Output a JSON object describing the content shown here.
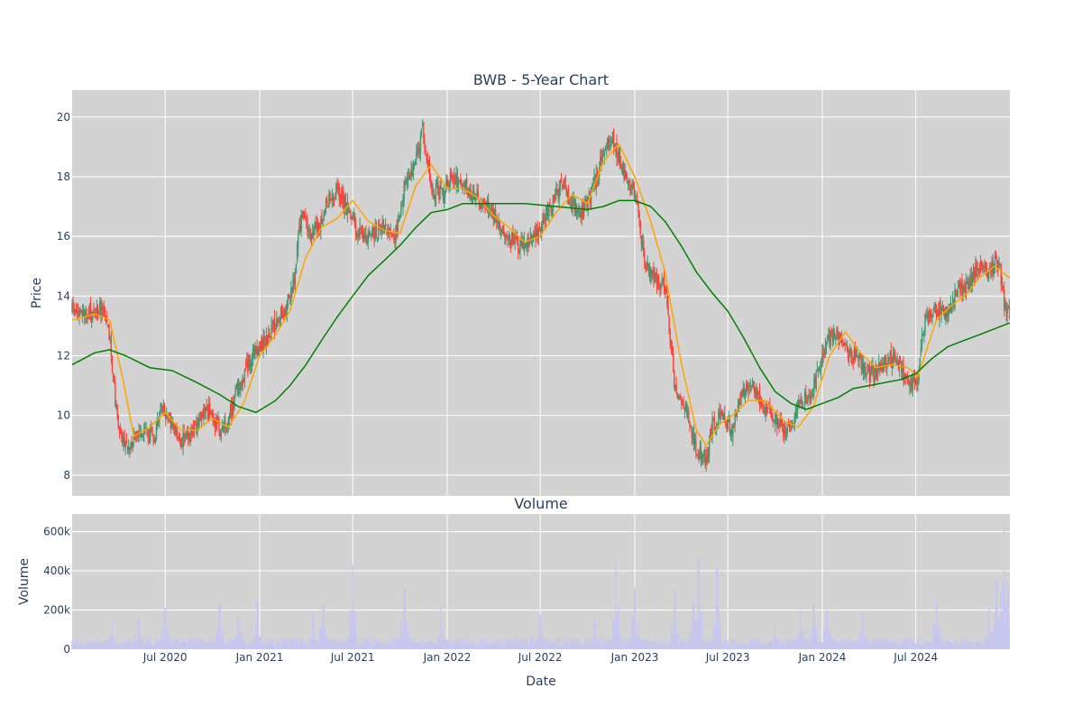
{
  "chart_data": [
    {
      "type": "candlestick",
      "title": "BWB - 5-Year Chart",
      "ylabel": "Price",
      "ylim": [
        7.3,
        20.9
      ],
      "y_ticks": [
        8,
        10,
        12,
        14,
        16,
        18,
        20
      ],
      "x_range": [
        "2020-01-02",
        "2024-12-31"
      ],
      "x_ticks": [
        {
          "date": "2020-07-01",
          "label": "Jul 2020"
        },
        {
          "date": "2021-01-01",
          "label": "Jan 2021"
        },
        {
          "date": "2021-07-01",
          "label": "Jul 2021"
        },
        {
          "date": "2022-01-01",
          "label": "Jan 2022"
        },
        {
          "date": "2022-07-01",
          "label": "Jul 2022"
        },
        {
          "date": "2023-01-01",
          "label": "Jan 2023"
        },
        {
          "date": "2023-07-01",
          "label": "Jul 2023"
        },
        {
          "date": "2024-01-01",
          "label": "Jan 2024"
        },
        {
          "date": "2024-07-01",
          "label": "Jul 2024"
        }
      ],
      "grid": true,
      "colors": {
        "background": "#d3d3d3",
        "increasing": "#3d9970",
        "decreasing": "#ff4136",
        "ma_short": "#ffa500",
        "ma_long": "#008000"
      },
      "close_path": [
        [
          "2020-01-02",
          13.5
        ],
        [
          "2020-02-01",
          13.3
        ],
        [
          "2020-03-01",
          13.6
        ],
        [
          "2020-03-15",
          12.5
        ],
        [
          "2020-04-01",
          9.5
        ],
        [
          "2020-04-15",
          8.9
        ],
        [
          "2020-05-01",
          9.2
        ],
        [
          "2020-05-20",
          9.6
        ],
        [
          "2020-06-10",
          9.3
        ],
        [
          "2020-06-25",
          10.3
        ],
        [
          "2020-07-15",
          9.6
        ],
        [
          "2020-08-01",
          9.2
        ],
        [
          "2020-09-01",
          9.6
        ],
        [
          "2020-09-20",
          10.2
        ],
        [
          "2020-10-15",
          9.5
        ],
        [
          "2020-11-01",
          9.8
        ],
        [
          "2020-11-20",
          11.0
        ],
        [
          "2020-12-15",
          11.9
        ],
        [
          "2021-01-01",
          12.3
        ],
        [
          "2021-02-01",
          13.0
        ],
        [
          "2021-02-20",
          13.5
        ],
        [
          "2021-03-10",
          14.7
        ],
        [
          "2021-03-25",
          17.0
        ],
        [
          "2021-04-10",
          15.9
        ],
        [
          "2021-05-01",
          16.5
        ],
        [
          "2021-05-15",
          17.2
        ],
        [
          "2021-06-01",
          17.6
        ],
        [
          "2021-06-20",
          17.0
        ],
        [
          "2021-07-10",
          16.2
        ],
        [
          "2021-08-01",
          16.0
        ],
        [
          "2021-09-01",
          16.3
        ],
        [
          "2021-09-20",
          16.0
        ],
        [
          "2021-10-10",
          17.7
        ],
        [
          "2021-11-01",
          18.5
        ],
        [
          "2021-11-15",
          19.6
        ],
        [
          "2021-12-01",
          17.6
        ],
        [
          "2021-12-20",
          17.4
        ],
        [
          "2022-01-10",
          18.0
        ],
        [
          "2022-02-01",
          17.7
        ],
        [
          "2022-03-01",
          17.3
        ],
        [
          "2022-04-01",
          16.8
        ],
        [
          "2022-05-01",
          16.0
        ],
        [
          "2022-05-20",
          15.7
        ],
        [
          "2022-06-15",
          15.8
        ],
        [
          "2022-07-01",
          16.3
        ],
        [
          "2022-07-20",
          17.0
        ],
        [
          "2022-08-15",
          17.8
        ],
        [
          "2022-09-01",
          17.0
        ],
        [
          "2022-09-20",
          16.8
        ],
        [
          "2022-10-10",
          17.5
        ],
        [
          "2022-11-01",
          18.8
        ],
        [
          "2022-11-20",
          19.3
        ],
        [
          "2022-12-10",
          18.2
        ],
        [
          "2023-01-01",
          17.4
        ],
        [
          "2023-01-10",
          16.5
        ],
        [
          "2023-01-20",
          15.0
        ],
        [
          "2023-02-15",
          14.5
        ],
        [
          "2023-03-01",
          14.3
        ],
        [
          "2023-03-20",
          11.0
        ],
        [
          "2023-04-10",
          10.3
        ],
        [
          "2023-05-01",
          8.9
        ],
        [
          "2023-05-20",
          8.5
        ],
        [
          "2023-06-01",
          9.7
        ],
        [
          "2023-06-20",
          10.0
        ],
        [
          "2023-07-10",
          9.6
        ],
        [
          "2023-08-01",
          10.9
        ],
        [
          "2023-08-20",
          10.8
        ],
        [
          "2023-09-10",
          10.3
        ],
        [
          "2023-10-01",
          9.8
        ],
        [
          "2023-10-25",
          9.4
        ],
        [
          "2023-11-15",
          10.4
        ],
        [
          "2023-12-10",
          10.6
        ],
        [
          "2023-12-25",
          11.5
        ],
        [
          "2024-01-10",
          12.6
        ],
        [
          "2024-02-01",
          12.7
        ],
        [
          "2024-02-20",
          12.0
        ],
        [
          "2024-03-10",
          11.9
        ],
        [
          "2024-04-01",
          11.4
        ],
        [
          "2024-04-20",
          11.5
        ],
        [
          "2024-05-10",
          11.9
        ],
        [
          "2024-06-01",
          11.6
        ],
        [
          "2024-06-20",
          11.0
        ],
        [
          "2024-07-05",
          11.3
        ],
        [
          "2024-07-20",
          13.5
        ],
        [
          "2024-08-10",
          13.6
        ],
        [
          "2024-09-01",
          13.3
        ],
        [
          "2024-09-20",
          14.2
        ],
        [
          "2024-10-10",
          14.3
        ],
        [
          "2024-11-01",
          15.1
        ],
        [
          "2024-11-20",
          14.8
        ],
        [
          "2024-12-10",
          15.2
        ],
        [
          "2024-12-20",
          13.8
        ],
        [
          "2024-12-31",
          13.5
        ]
      ],
      "series": [
        {
          "line": "short moving average",
          "points": [
            [
              "2020-01-02",
              13.2
            ],
            [
              "2020-02-15",
              13.4
            ],
            [
              "2020-03-15",
              13.2
            ],
            [
              "2020-04-10",
              11.2
            ],
            [
              "2020-05-01",
              9.3
            ],
            [
              "2020-06-01",
              9.6
            ],
            [
              "2020-07-01",
              10.1
            ],
            [
              "2020-08-01",
              9.5
            ],
            [
              "2020-09-01",
              9.5
            ],
            [
              "2020-10-01",
              9.9
            ],
            [
              "2020-11-01",
              9.6
            ],
            [
              "2020-12-01",
              10.4
            ],
            [
              "2021-01-01",
              12.0
            ],
            [
              "2021-02-01",
              12.7
            ],
            [
              "2021-03-01",
              13.5
            ],
            [
              "2021-04-01",
              15.3
            ],
            [
              "2021-05-01",
              16.3
            ],
            [
              "2021-06-01",
              16.6
            ],
            [
              "2021-07-01",
              17.2
            ],
            [
              "2021-08-01",
              16.5
            ],
            [
              "2021-09-01",
              16.2
            ],
            [
              "2021-10-01",
              16.1
            ],
            [
              "2021-11-01",
              17.7
            ],
            [
              "2021-12-01",
              18.4
            ],
            [
              "2022-01-01",
              17.6
            ],
            [
              "2022-02-01",
              17.6
            ],
            [
              "2022-03-01",
              17.3
            ],
            [
              "2022-04-01",
              16.7
            ],
            [
              "2022-05-01",
              16.3
            ],
            [
              "2022-06-01",
              15.8
            ],
            [
              "2022-07-01",
              16.0
            ],
            [
              "2022-08-01",
              16.8
            ],
            [
              "2022-09-01",
              17.4
            ],
            [
              "2022-10-01",
              17.1
            ],
            [
              "2022-11-01",
              18.5
            ],
            [
              "2022-12-01",
              19.1
            ],
            [
              "2023-01-01",
              18.0
            ],
            [
              "2023-02-01",
              16.5
            ],
            [
              "2023-03-01",
              14.8
            ],
            [
              "2023-04-01",
              11.8
            ],
            [
              "2023-05-01",
              9.5
            ],
            [
              "2023-05-20",
              9.0
            ],
            [
              "2023-06-15",
              9.7
            ],
            [
              "2023-07-10",
              10.0
            ],
            [
              "2023-08-10",
              10.5
            ],
            [
              "2023-09-10",
              10.5
            ],
            [
              "2023-10-20",
              9.8
            ],
            [
              "2023-11-15",
              9.6
            ],
            [
              "2023-12-15",
              10.3
            ],
            [
              "2024-01-15",
              12.0
            ],
            [
              "2024-02-15",
              12.8
            ],
            [
              "2024-03-15",
              12.1
            ],
            [
              "2024-04-15",
              11.6
            ],
            [
              "2024-05-15",
              11.7
            ],
            [
              "2024-06-15",
              11.6
            ],
            [
              "2024-07-05",
              11.3
            ],
            [
              "2024-08-10",
              13.2
            ],
            [
              "2024-09-10",
              13.7
            ],
            [
              "2024-10-10",
              14.1
            ],
            [
              "2024-11-01",
              14.6
            ],
            [
              "2024-12-01",
              15.0
            ],
            [
              "2024-12-31",
              14.6
            ]
          ]
        },
        {
          "line": "long moving average",
          "points": [
            [
              "2020-01-02",
              11.7
            ],
            [
              "2020-02-15",
              12.1
            ],
            [
              "2020-03-15",
              12.2
            ],
            [
              "2020-04-15",
              12.0
            ],
            [
              "2020-06-01",
              11.6
            ],
            [
              "2020-07-15",
              11.5
            ],
            [
              "2020-09-01",
              11.1
            ],
            [
              "2020-10-15",
              10.7
            ],
            [
              "2020-11-20",
              10.3
            ],
            [
              "2020-12-25",
              10.1
            ],
            [
              "2021-02-01",
              10.5
            ],
            [
              "2021-03-01",
              11.0
            ],
            [
              "2021-04-01",
              11.7
            ],
            [
              "2021-05-01",
              12.5
            ],
            [
              "2021-06-01",
              13.3
            ],
            [
              "2021-07-01",
              14.0
            ],
            [
              "2021-08-01",
              14.7
            ],
            [
              "2021-09-01",
              15.2
            ],
            [
              "2021-10-01",
              15.7
            ],
            [
              "2021-11-01",
              16.3
            ],
            [
              "2021-12-01",
              16.8
            ],
            [
              "2022-01-01",
              16.9
            ],
            [
              "2022-02-01",
              17.1
            ],
            [
              "2022-04-01",
              17.1
            ],
            [
              "2022-06-01",
              17.1
            ],
            [
              "2022-08-01",
              17.0
            ],
            [
              "2022-10-01",
              16.9
            ],
            [
              "2022-11-01",
              17.0
            ],
            [
              "2022-12-01",
              17.2
            ],
            [
              "2023-01-01",
              17.2
            ],
            [
              "2023-02-01",
              17.0
            ],
            [
              "2023-03-01",
              16.5
            ],
            [
              "2023-04-01",
              15.7
            ],
            [
              "2023-05-01",
              14.8
            ],
            [
              "2023-06-01",
              14.1
            ],
            [
              "2023-07-01",
              13.5
            ],
            [
              "2023-08-01",
              12.6
            ],
            [
              "2023-09-01",
              11.6
            ],
            [
              "2023-10-01",
              10.8
            ],
            [
              "2023-11-01",
              10.4
            ],
            [
              "2023-12-01",
              10.2
            ],
            [
              "2024-01-01",
              10.4
            ],
            [
              "2024-02-01",
              10.6
            ],
            [
              "2024-03-01",
              10.9
            ],
            [
              "2024-04-01",
              11.0
            ],
            [
              "2024-05-01",
              11.1
            ],
            [
              "2024-06-01",
              11.2
            ],
            [
              "2024-07-01",
              11.4
            ],
            [
              "2024-08-01",
              11.9
            ],
            [
              "2024-09-01",
              12.3
            ],
            [
              "2024-10-01",
              12.5
            ],
            [
              "2024-11-01",
              12.7
            ],
            [
              "2024-12-01",
              12.9
            ],
            [
              "2024-12-31",
              13.1
            ]
          ]
        }
      ]
    },
    {
      "type": "bar",
      "title": "Volume",
      "xlabel": "Date",
      "ylabel": "Volume",
      "ylim": [
        0,
        690000
      ],
      "y_ticks": [
        {
          "value": 0,
          "label": "0"
        },
        {
          "value": 200000,
          "label": "200k"
        },
        {
          "value": 400000,
          "label": "400k"
        },
        {
          "value": 600000,
          "label": "600k"
        }
      ],
      "colors": {
        "background": "#d3d3d3",
        "bar": "#c6c6f0"
      },
      "spikes": [
        [
          "2020-03-20",
          150000
        ],
        [
          "2020-05-10",
          160000
        ],
        [
          "2020-07-01",
          210000
        ],
        [
          "2020-10-15",
          230000
        ],
        [
          "2020-11-20",
          170000
        ],
        [
          "2020-12-28",
          240000
        ],
        [
          "2021-04-15",
          180000
        ],
        [
          "2021-05-05",
          230000
        ],
        [
          "2021-07-01",
          430000
        ],
        [
          "2021-10-10",
          310000
        ],
        [
          "2021-12-20",
          220000
        ],
        [
          "2022-07-01",
          180000
        ],
        [
          "2022-10-15",
          140000
        ],
        [
          "2022-11-25",
          480000
        ],
        [
          "2023-01-01",
          310000
        ],
        [
          "2023-03-20",
          310000
        ],
        [
          "2023-04-25",
          240000
        ],
        [
          "2023-05-05",
          470000
        ],
        [
          "2023-06-10",
          420000
        ],
        [
          "2023-10-01",
          150000
        ],
        [
          "2023-11-20",
          200000
        ],
        [
          "2023-12-15",
          240000
        ],
        [
          "2024-01-10",
          200000
        ],
        [
          "2024-03-20",
          180000
        ],
        [
          "2024-08-10",
          250000
        ],
        [
          "2024-11-20",
          210000
        ],
        [
          "2024-12-05",
          360000
        ],
        [
          "2024-12-20",
          650000
        ],
        [
          "2024-12-28",
          300000
        ]
      ]
    }
  ]
}
